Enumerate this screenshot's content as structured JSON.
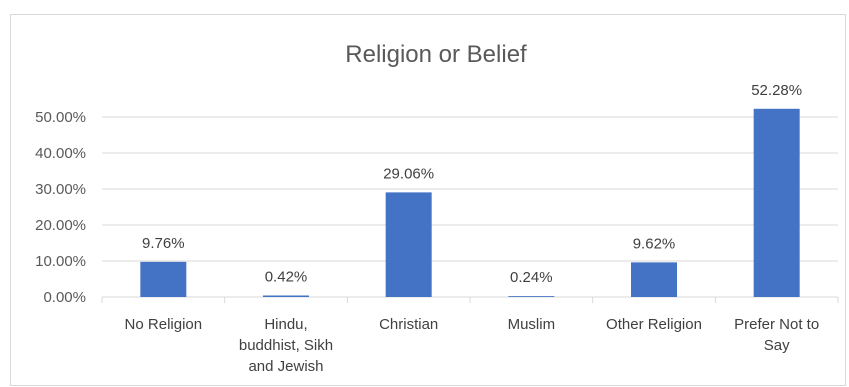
{
  "chart_data": {
    "type": "bar",
    "title": "Religion or Belief",
    "categories": [
      "No Religion",
      "Hindu, buddhist, Sikh and Jewish",
      "Christian",
      "Muslim",
      "Other Religion",
      "Prefer Not to Say"
    ],
    "category_lines": [
      [
        "No Religion"
      ],
      [
        "Hindu,",
        "buddhist, Sikh",
        "and Jewish"
      ],
      [
        "Christian"
      ],
      [
        "Muslim"
      ],
      [
        "Other Religion"
      ],
      [
        "Prefer Not to",
        "Say"
      ]
    ],
    "values": [
      9.76,
      0.42,
      29.06,
      0.24,
      9.62,
      52.28
    ],
    "data_labels": [
      "9.76%",
      "0.42%",
      "29.06%",
      "0.24%",
      "9.62%",
      "52.28%"
    ],
    "y_ticks": [
      0,
      10,
      20,
      30,
      40,
      50
    ],
    "y_tick_labels": [
      "0.00%",
      "10.00%",
      "20.00%",
      "30.00%",
      "40.00%",
      "50.00%"
    ],
    "ylim": [
      0,
      50
    ],
    "grid": true,
    "legend": "none",
    "colors": {
      "bar": "#4472C4",
      "grid": "#d9d9d9",
      "text": "#404040"
    }
  }
}
